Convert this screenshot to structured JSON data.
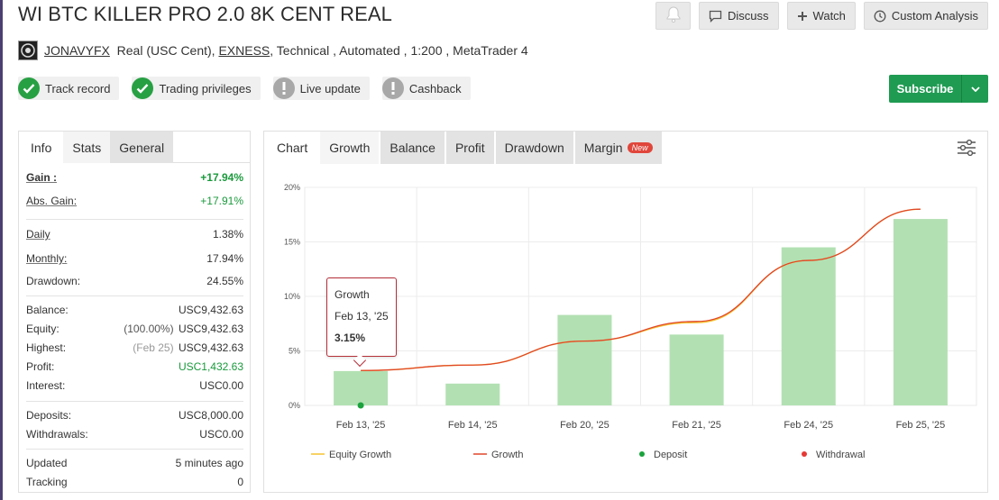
{
  "header": {
    "title": "WI BTC KILLER PRO 2.0 8K CENT REAL",
    "actions": {
      "discuss": "Discuss",
      "watch": "Watch",
      "custom_analysis": "Custom Analysis"
    }
  },
  "meta": {
    "username": "JONAVYFX",
    "account_type": "Real (USC Cent),",
    "broker": "EXNESS",
    "details": ", Technical , Automated , 1:200 , MetaTrader 4"
  },
  "badges": [
    {
      "label": "Track record",
      "icon": "check-icon",
      "status": "ok"
    },
    {
      "label": "Trading privileges",
      "icon": "check-icon",
      "status": "ok"
    },
    {
      "label": "Live update",
      "icon": "exclamation-icon",
      "status": "na"
    },
    {
      "label": "Cashback",
      "icon": "exclamation-icon",
      "status": "na"
    }
  ],
  "subscribe_label": "Subscribe",
  "colors": {
    "accent_green": "#1f9b52",
    "positive": "#1a9a3c",
    "bar": "#b2e0b2",
    "growth_line": "#e0452a",
    "equity_line": "#f4c430",
    "deposit": "#1aa33c",
    "withdrawal": "#e53935"
  },
  "stats": {
    "tabs": [
      "Info",
      "Stats",
      "General"
    ],
    "gain_label": "Gain :",
    "gain_value": "+17.94%",
    "abs_gain_label": "Abs. Gain:",
    "abs_gain_value": "+17.91%",
    "daily_label": "Daily",
    "daily_value": "1.38%",
    "monthly_label": "Monthly:",
    "monthly_value": "17.94%",
    "drawdown_label": "Drawdown:",
    "drawdown_value": "24.55%",
    "balance_label": "Balance:",
    "balance_value": "USC9,432.63",
    "equity_label": "Equity:",
    "equity_note": "(100.00%)",
    "equity_value": "USC9,432.63",
    "highest_label": "Highest:",
    "highest_note": "(Feb 25)",
    "highest_value": "USC9,432.63",
    "profit_label": "Profit:",
    "profit_value": "USC1,432.63",
    "interest_label": "Interest:",
    "interest_value": "USC0.00",
    "deposits_label": "Deposits:",
    "deposits_value": "USC8,000.00",
    "withdrawals_label": "Withdrawals:",
    "withdrawals_value": "USC0.00",
    "updated_label": "Updated",
    "updated_value": "5 minutes ago",
    "tracking_label": "Tracking",
    "tracking_value": "0"
  },
  "chart_tabs": {
    "label": "Chart",
    "tabs": [
      "Growth",
      "Balance",
      "Profit",
      "Drawdown",
      "Margin"
    ],
    "new_tag": "New"
  },
  "tooltip": {
    "title": "Growth",
    "date": "Feb 13, '25",
    "value": "3.15%"
  },
  "chart_data": {
    "type": "bar",
    "categories": [
      "Feb 13, '25",
      "Feb 14, '25",
      "Feb 20, '25",
      "Feb 21, '25",
      "Feb 24, '25",
      "Feb 25, '25"
    ],
    "series": [
      {
        "name": "Growth",
        "type": "bar",
        "values": [
          3.15,
          2.0,
          8.3,
          6.5,
          14.5,
          17.1
        ]
      },
      {
        "name": "Growth",
        "type": "line",
        "values": [
          3.2,
          3.7,
          5.9,
          7.7,
          13.3,
          18.0
        ]
      },
      {
        "name": "Equity Growth",
        "type": "line",
        "values": [
          3.2,
          3.7,
          5.9,
          7.6,
          13.3,
          18.0
        ]
      }
    ],
    "deposit_points": [
      {
        "category": "Feb 13, '25",
        "value": 0
      }
    ],
    "y_ticks": [
      "0%",
      "5%",
      "10%",
      "15%",
      "20%"
    ],
    "ylim": [
      0,
      20
    ],
    "grid": true,
    "legend": [
      "Equity Growth",
      "Growth",
      "Deposit",
      "Withdrawal"
    ],
    "legend_position": "bottom"
  }
}
